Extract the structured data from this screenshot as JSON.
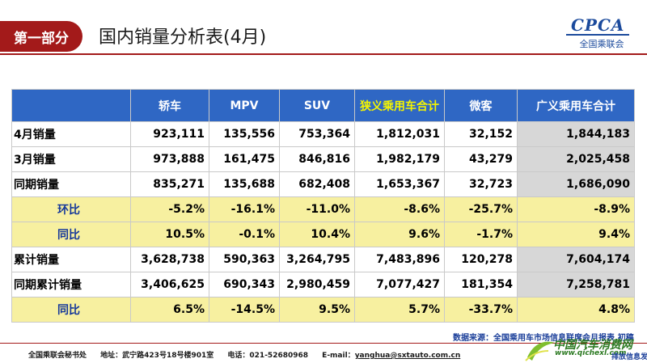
{
  "header": {
    "section_label": "第一部分",
    "title": "国内销量分析表(4月)",
    "logo": {
      "mark": "CPCA",
      "subtitle": "全国乘联会"
    }
  },
  "table": {
    "columns": [
      "轿车",
      "MPV",
      "SUV",
      "狭义乘用车合计",
      "微客",
      "广义乘用车合计"
    ],
    "rows": [
      {
        "label": "4月销量",
        "cells": [
          "923,111",
          "135,556",
          "753,364",
          "1,812,031",
          "32,152",
          "1,844,183"
        ]
      },
      {
        "label": "3月销量",
        "cells": [
          "973,888",
          "161,475",
          "846,816",
          "1,982,179",
          "43,279",
          "2,025,458"
        ]
      },
      {
        "label": "同期销量",
        "cells": [
          "835,271",
          "135,688",
          "682,408",
          "1,653,367",
          "32,723",
          "1,686,090"
        ]
      },
      {
        "label": "环比",
        "cells": [
          "-5.2%",
          "-16.1%",
          "-11.0%",
          "-8.6%",
          "-25.7%",
          "-8.9%"
        ]
      },
      {
        "label": "同比",
        "cells": [
          "10.5%",
          "-0.1%",
          "10.4%",
          "9.6%",
          "-1.7%",
          "9.4%"
        ]
      },
      {
        "label": "累计销量",
        "cells": [
          "3,628,738",
          "590,363",
          "3,264,795",
          "7,483,896",
          "120,278",
          "7,604,174"
        ]
      },
      {
        "label": "同期累计销量",
        "cells": [
          "3,406,625",
          "690,343",
          "2,980,459",
          "7,077,427",
          "181,354",
          "7,258,781"
        ]
      },
      {
        "label": "同比",
        "cells": [
          "6.5%",
          "-14.5%",
          "9.5%",
          "5.7%",
          "-33.7%",
          "4.8%"
        ]
      }
    ]
  },
  "source_note": "数据来源：全国乘用车市场信息联席会月报表,初稿",
  "footer": {
    "org": "全国乘联会秘书处",
    "address": "地址：武宁路423号18号楼901室",
    "phone": "电话：021-52680968",
    "email_label": "E-mail：",
    "email": "yanghua@sxtauto.com.cn"
  },
  "watermark": {
    "name": "中国汽车消费网",
    "url": "www.qichexl.com",
    "tagline": "排放信息发布"
  },
  "colors": {
    "brand_red": "#a31a1a",
    "header_blue": "#2f67c4",
    "highlight_yellow": "#f7f0a0",
    "grey_cell": "#d7d7d7"
  }
}
